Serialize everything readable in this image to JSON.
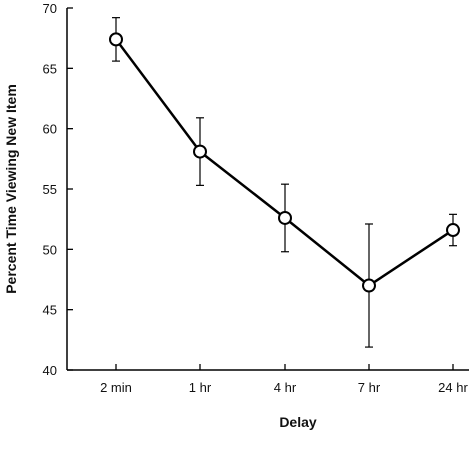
{
  "chart_data": {
    "type": "line",
    "categories": [
      "2 min",
      "1 hr",
      "4 hr",
      "7 hr",
      "24 hr"
    ],
    "series": [
      {
        "values": [
          67.4,
          58.1,
          52.6,
          47.0,
          51.6
        ],
        "error": [
          1.8,
          2.8,
          2.8,
          5.1,
          1.3
        ]
      }
    ],
    "xlabel": "Delay",
    "ylabel": "Percent Time Viewing New Item",
    "ylim": [
      40,
      70
    ],
    "yticks": [
      40,
      45,
      50,
      55,
      60,
      65,
      70
    ],
    "grid": false
  }
}
